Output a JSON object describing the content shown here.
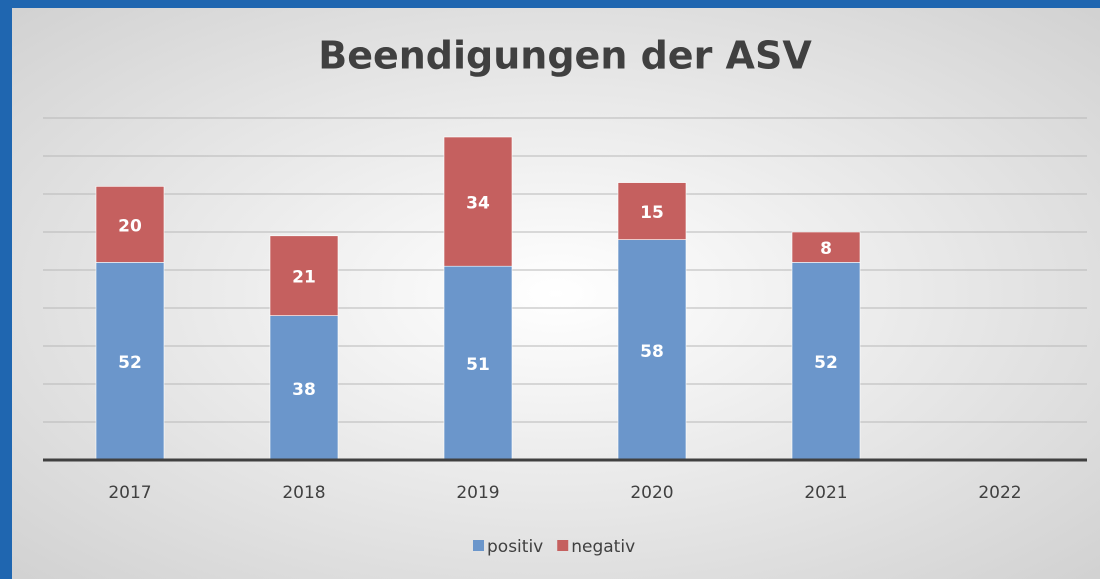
{
  "chart_data": {
    "type": "stacked_bar",
    "title": "Beendigungen der ASV",
    "categories": [
      "2017",
      "2018",
      "2019",
      "2020",
      "2021",
      "2022"
    ],
    "series": [
      {
        "name": "positiv",
        "color": "#6b96cb",
        "values": [
          52,
          38,
          51,
          58,
          52,
          null
        ]
      },
      {
        "name": "negativ",
        "color": "#c5605f",
        "values": [
          20,
          21,
          34,
          15,
          8,
          null
        ]
      }
    ],
    "ylim": [
      0,
      90
    ],
    "yticks": [
      0,
      10,
      20,
      30,
      40,
      50,
      60,
      70,
      80,
      90
    ],
    "grid": true,
    "legend": "bottom"
  }
}
